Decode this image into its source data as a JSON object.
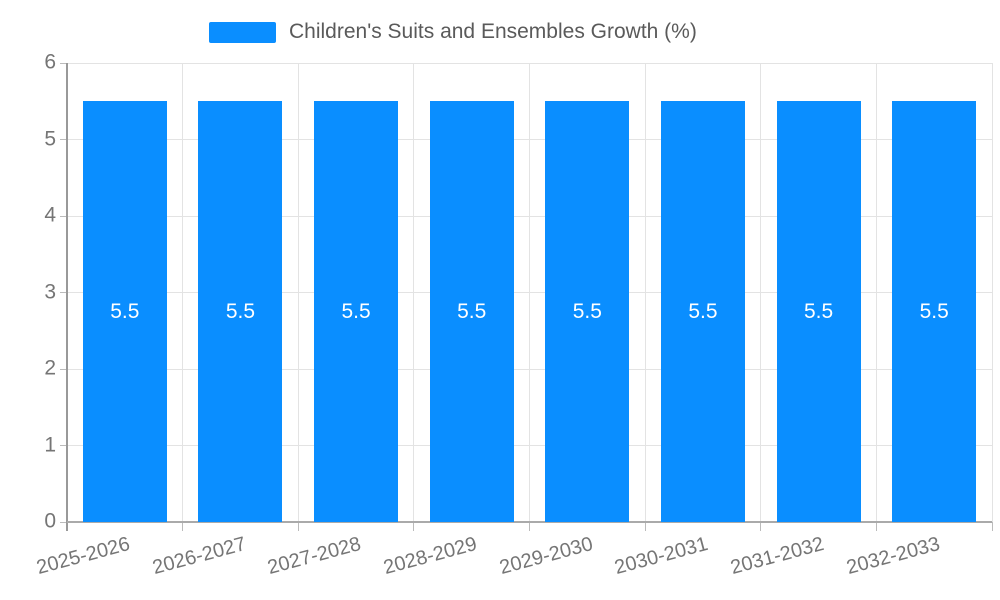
{
  "chart_data": {
    "type": "bar",
    "title": "",
    "categories": [
      "2025-2026",
      "2026-2027",
      "2027-2028",
      "2028-2029",
      "2029-2030",
      "2030-2031",
      "2031-2032",
      "2032-2033"
    ],
    "series": [
      {
        "name": "Children's Suits and Ensembles Growth (%)",
        "values": [
          5.5,
          5.5,
          5.5,
          5.5,
          5.5,
          5.5,
          5.5,
          5.5
        ],
        "value_labels": [
          "5.5",
          "5.5",
          "5.5",
          "5.5",
          "5.5",
          "5.5",
          "5.5",
          "5.5"
        ]
      }
    ],
    "xlabel": "",
    "ylabel": "",
    "ylim": [
      0,
      6
    ],
    "yticks": [
      "0",
      "1",
      "2",
      "3",
      "4",
      "5",
      "6"
    ],
    "grid": true,
    "legend_position": "top-center",
    "bar_color": "#0a8eff",
    "bar_label_color": "#ffffff",
    "axis_text_color": "#757575",
    "legend_text_color": "#5a5a5a",
    "grid_color": "#e3e3e3"
  }
}
